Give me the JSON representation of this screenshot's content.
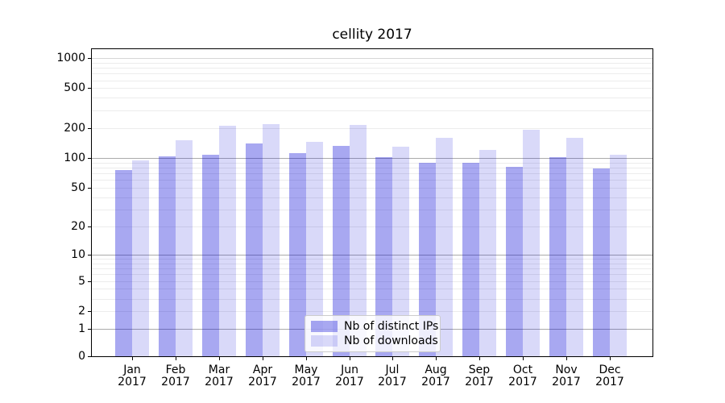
{
  "title": "cellity 2017",
  "chart_data": {
    "type": "bar",
    "title": "cellity 2017",
    "categories": [
      "Jan 2017",
      "Feb 2017",
      "Mar 2017",
      "Apr 2017",
      "May 2017",
      "Jun 2017",
      "Jul 2017",
      "Aug 2017",
      "Sep 2017",
      "Oct 2017",
      "Nov 2017",
      "Dec 2017"
    ],
    "x_months": [
      "Jan",
      "Feb",
      "Mar",
      "Apr",
      "May",
      "Jun",
      "Jul",
      "Aug",
      "Sep",
      "Oct",
      "Nov",
      "Dec"
    ],
    "x_year": "2017",
    "series": [
      {
        "name": "Nb of distinct IPs",
        "color_key": "bar_distinct_ips",
        "values": [
          75,
          103,
          108,
          141,
          111,
          133,
          101,
          89,
          90,
          82,
          101,
          78
        ]
      },
      {
        "name": "Nb of downloads",
        "color_key": "bar_downloads",
        "values": [
          95,
          150,
          210,
          217,
          146,
          214,
          129,
          160,
          121,
          193,
          158,
          107
        ]
      }
    ],
    "yscale": "log1p",
    "ylim": [
      0,
      1250
    ],
    "yticks": [
      0,
      1,
      2,
      5,
      10,
      20,
      50,
      100,
      200,
      500,
      1000
    ],
    "ygrid_major": [
      1,
      10,
      100
    ],
    "ygrid_mid": [
      1000
    ],
    "ygrid_minor": [
      2,
      3,
      4,
      5,
      6,
      7,
      8,
      9,
      20,
      30,
      40,
      50,
      60,
      70,
      80,
      90,
      200,
      300,
      400,
      500,
      600,
      700,
      800,
      900
    ],
    "grid": true,
    "legend_position": "lower center",
    "colors": {
      "bar_distinct_ips": "rgba(0,0,215,0.34)",
      "bar_downloads": "rgba(0,0,215,0.15)",
      "grid_major": "#ababab",
      "grid_mid": "#d6d6d6",
      "grid_minor": "#ececec",
      "axis": "#000000",
      "background": "#ffffff"
    }
  }
}
